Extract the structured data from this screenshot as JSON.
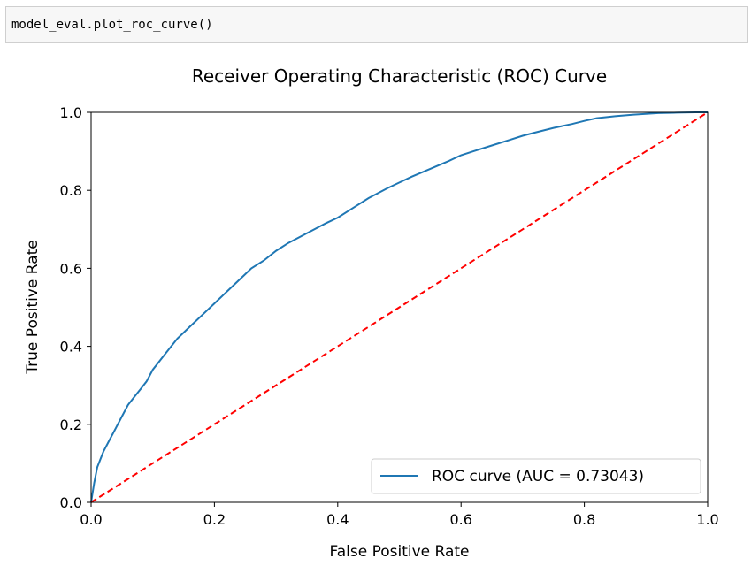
{
  "cell": {
    "code": "model_eval.plot_roc_curve()"
  },
  "chart_data": {
    "type": "line",
    "title": "Receiver Operating Characteristic (ROC) Curve",
    "xlabel": "False Positive Rate",
    "ylabel": "True Positive Rate",
    "xlim": [
      0.0,
      1.0
    ],
    "ylim": [
      0.0,
      1.0
    ],
    "xticks": [
      "0.0",
      "0.2",
      "0.4",
      "0.6",
      "0.8",
      "1.0"
    ],
    "yticks": [
      "0.0",
      "0.2",
      "0.4",
      "0.6",
      "0.8",
      "1.0"
    ],
    "grid": false,
    "legend_position": "lower-right",
    "series": [
      {
        "name": "ROC curve (AUC = 0.73043)",
        "color": "#1f77b4",
        "style": "solid",
        "x": [
          0.0,
          0.005,
          0.01,
          0.02,
          0.03,
          0.04,
          0.05,
          0.06,
          0.07,
          0.08,
          0.09,
          0.1,
          0.12,
          0.14,
          0.16,
          0.18,
          0.2,
          0.22,
          0.24,
          0.26,
          0.28,
          0.3,
          0.32,
          0.35,
          0.38,
          0.4,
          0.42,
          0.45,
          0.48,
          0.5,
          0.52,
          0.55,
          0.58,
          0.6,
          0.62,
          0.65,
          0.68,
          0.7,
          0.72,
          0.75,
          0.78,
          0.8,
          0.82,
          0.85,
          0.88,
          0.9,
          0.92,
          0.95,
          0.98,
          1.0
        ],
        "y": [
          0.0,
          0.05,
          0.09,
          0.13,
          0.16,
          0.19,
          0.22,
          0.25,
          0.27,
          0.29,
          0.31,
          0.34,
          0.38,
          0.42,
          0.45,
          0.48,
          0.51,
          0.54,
          0.57,
          0.6,
          0.62,
          0.645,
          0.665,
          0.69,
          0.715,
          0.73,
          0.75,
          0.78,
          0.805,
          0.82,
          0.835,
          0.855,
          0.875,
          0.89,
          0.9,
          0.915,
          0.93,
          0.94,
          0.948,
          0.96,
          0.97,
          0.978,
          0.985,
          0.99,
          0.994,
          0.996,
          0.998,
          0.999,
          1.0,
          1.0
        ]
      },
      {
        "name": "",
        "color": "#ff0000",
        "style": "dashed",
        "x": [
          0.0,
          1.0
        ],
        "y": [
          0.0,
          1.0
        ]
      }
    ]
  }
}
